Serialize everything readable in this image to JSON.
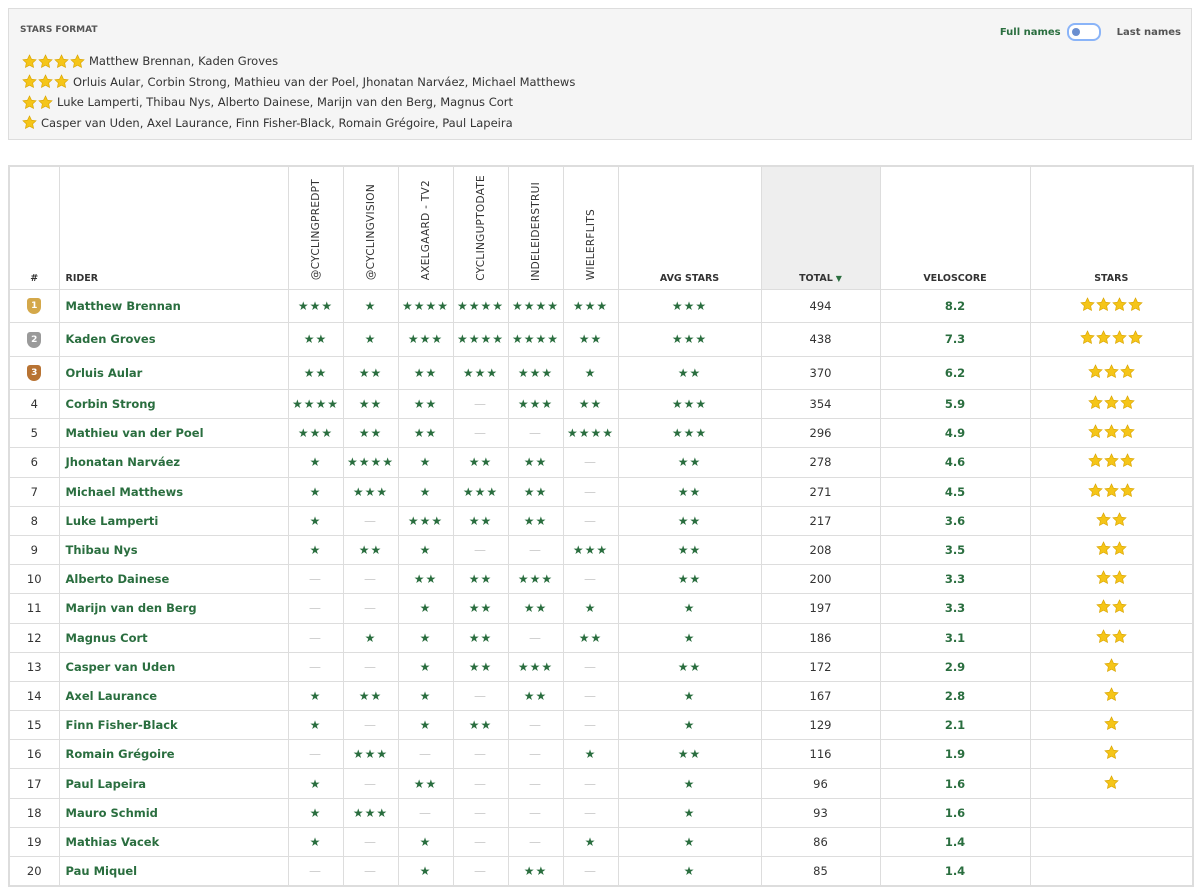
{
  "stars_format": {
    "title": "STARS FORMAT",
    "toggle": {
      "left": "Full names",
      "right": "Last names"
    },
    "groups": [
      {
        "stars": 4,
        "riders": "Matthew Brennan, Kaden Groves"
      },
      {
        "stars": 3,
        "riders": "Orluis Aular, Corbin Strong, Mathieu van der Poel, Jhonatan Narváez, Michael Matthews"
      },
      {
        "stars": 2,
        "riders": "Luke Lamperti, Thibau Nys, Alberto Dainese, Marijn van den Berg, Magnus Cort"
      },
      {
        "stars": 1,
        "riders": "Casper van Uden, Axel Laurance, Finn Fisher-Black, Romain Grégoire, Paul Lapeira"
      }
    ]
  },
  "table": {
    "columns": [
      "#",
      "RIDER",
      "@CYCLINGPREDPT",
      "@CYCLINGVISION",
      "AXELGAARD - TV2",
      "CYCLINGUPTODATE",
      "INDELEIDERSTRUI",
      "WIELERFLITS",
      "AVG STARS",
      "TOTAL",
      "VELOSCORE",
      "STARS"
    ],
    "rows": [
      [
        1,
        "Matthew Brennan",
        "★★★",
        "★",
        "★★★★",
        "★★★★",
        "★★★★",
        "★★★",
        "★★★",
        494,
        8.2,
        4
      ],
      [
        2,
        "Kaden Groves",
        "★★",
        "★",
        "★★★",
        "★★★★",
        "★★★★",
        "★★",
        "★★★",
        438,
        7.3,
        4
      ],
      [
        3,
        "Orluis Aular",
        "★★",
        "★★",
        "★★",
        "★★★",
        "★★★",
        "★",
        "★★",
        370,
        6.2,
        3
      ],
      [
        4,
        "Corbin Strong",
        "★★★★",
        "★★",
        "★★",
        "—",
        "★★★",
        "★★",
        "★★★",
        354,
        5.9,
        3
      ],
      [
        5,
        "Mathieu van der Poel",
        "★★★",
        "★★",
        "★★",
        "—",
        "—",
        "★★★★",
        "★★★",
        296,
        4.9,
        3
      ],
      [
        6,
        "Jhonatan Narváez",
        "★",
        "★★★★",
        "★",
        "★★",
        "★★",
        "—",
        "★★",
        278,
        4.6,
        3
      ],
      [
        7,
        "Michael Matthews",
        "★",
        "★★★",
        "★",
        "★★★",
        "★★",
        "—",
        "★★",
        271,
        4.5,
        3
      ],
      [
        8,
        "Luke Lamperti",
        "★",
        "—",
        "★★★",
        "★★",
        "★★",
        "—",
        "★★",
        217,
        3.6,
        2
      ],
      [
        9,
        "Thibau Nys",
        "★",
        "★★",
        "★",
        "—",
        "—",
        "★★★",
        "★★",
        208,
        3.5,
        2
      ],
      [
        10,
        "Alberto Dainese",
        "—",
        "—",
        "★★",
        "★★",
        "★★★",
        "—",
        "★★",
        200,
        3.3,
        2
      ],
      [
        11,
        "Marijn van den Berg",
        "—",
        "—",
        "★",
        "★★",
        "★★",
        "★",
        "★",
        197,
        3.3,
        2
      ],
      [
        12,
        "Magnus Cort",
        "—",
        "★",
        "★",
        "★★",
        "—",
        "★★",
        "★",
        186,
        3.1,
        2
      ],
      [
        13,
        "Casper van Uden",
        "—",
        "—",
        "★",
        "★★",
        "★★★",
        "—",
        "★★",
        172,
        2.9,
        1
      ],
      [
        14,
        "Axel Laurance",
        "★",
        "★★",
        "★",
        "—",
        "★★",
        "—",
        "★",
        167,
        2.8,
        1
      ],
      [
        15,
        "Finn Fisher-Black",
        "★",
        "—",
        "★",
        "★★",
        "—",
        "—",
        "★",
        129,
        2.1,
        1
      ],
      [
        16,
        "Romain Grégoire",
        "—",
        "★★★",
        "—",
        "—",
        "—",
        "★",
        "★★",
        116,
        1.9,
        1
      ],
      [
        17,
        "Paul Lapeira",
        "★",
        "—",
        "★★",
        "—",
        "—",
        "—",
        "★",
        96,
        1.6,
        1
      ],
      [
        18,
        "Mauro Schmid",
        "★",
        "★★★",
        "—",
        "—",
        "—",
        "—",
        "★",
        93,
        1.6,
        null
      ],
      [
        19,
        "Mathias Vacek",
        "★",
        "—",
        "★",
        "—",
        "—",
        "★",
        "★",
        86,
        1.4,
        null
      ],
      [
        20,
        "Pau Miquel",
        "—",
        "—",
        "★",
        "—",
        "★★",
        "—",
        "★",
        85,
        1.4,
        null
      ]
    ]
  }
}
